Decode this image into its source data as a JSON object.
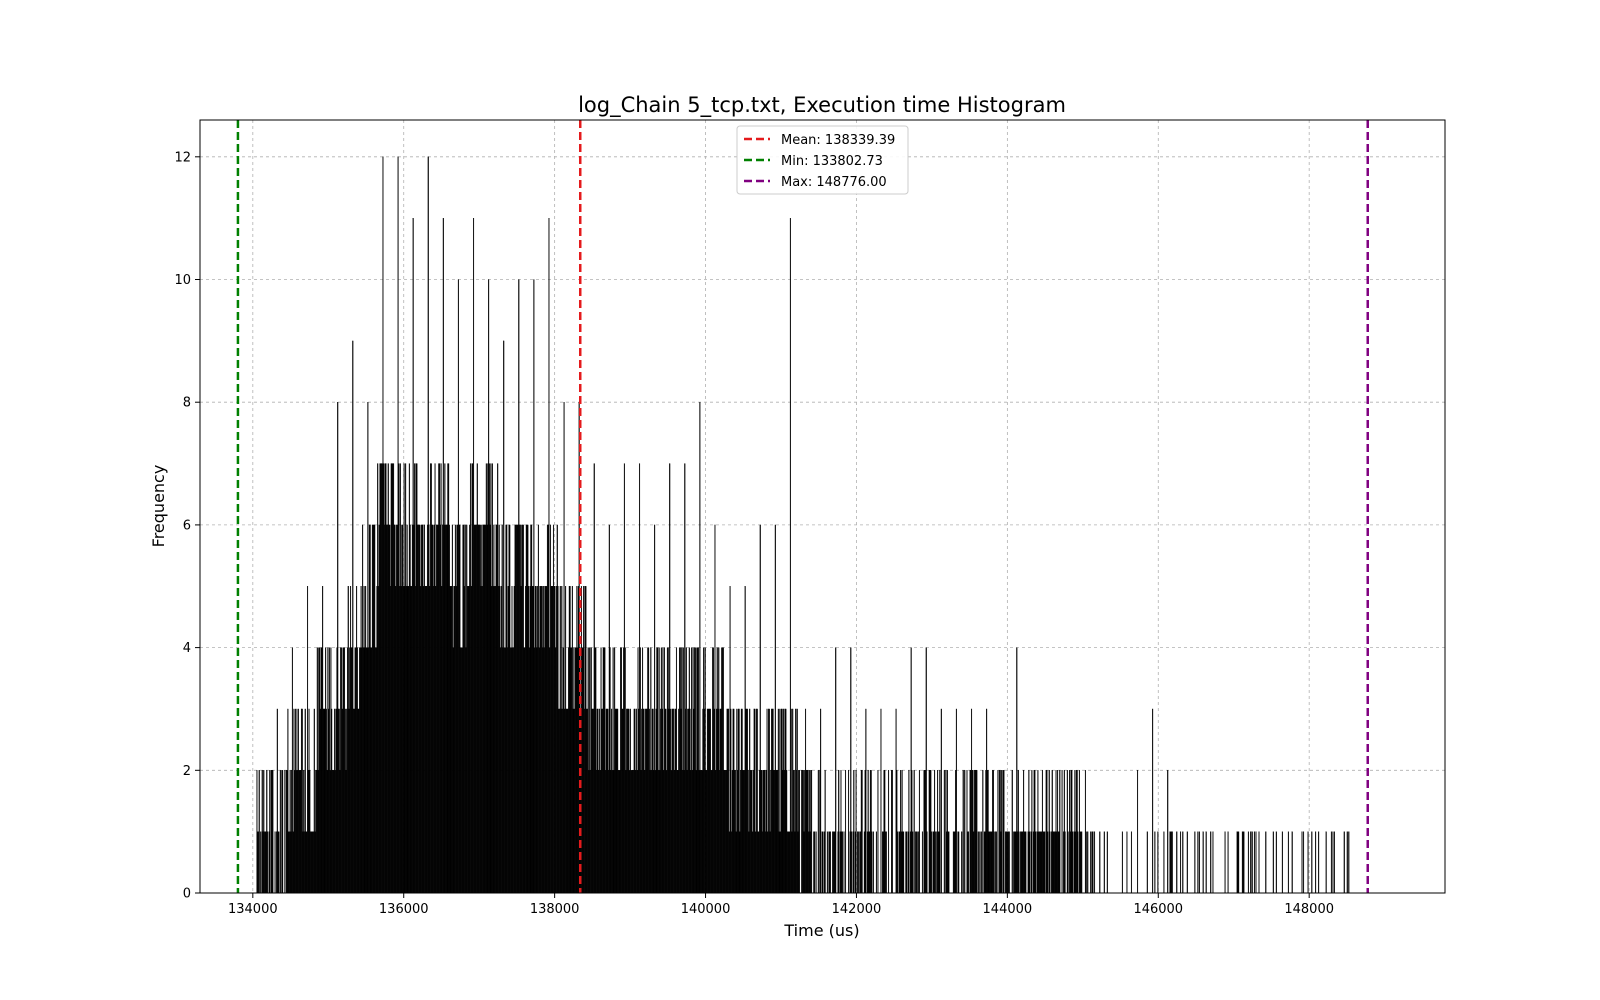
{
  "chart_data": {
    "type": "bar",
    "title": "log_Chain 5_tcp.txt, Execution time Histogram",
    "xlabel": "Time (us)",
    "ylabel": "Frequency",
    "xlim": [
      133300,
      149800
    ],
    "ylim": [
      0,
      12.6
    ],
    "xticks": [
      134000,
      136000,
      138000,
      140000,
      142000,
      144000,
      146000,
      148000
    ],
    "yticks": [
      0,
      2,
      4,
      6,
      8,
      10,
      12
    ],
    "grid": true,
    "legend_position": "top-center",
    "bar_color": "#000000",
    "bins": {
      "centers": [
        134150,
        134350,
        134550,
        134750,
        134950,
        135150,
        135350,
        135550,
        135750,
        135950,
        136150,
        136350,
        136550,
        136750,
        136950,
        137150,
        137350,
        137550,
        137750,
        137950,
        138150,
        138350,
        138550,
        138750,
        138950,
        139150,
        139350,
        139550,
        139750,
        139950,
        140150,
        140350,
        140550,
        140750,
        140950,
        141150,
        141350,
        141550,
        141750,
        141950,
        142150,
        142350,
        142550,
        142750,
        142950,
        143150,
        143350,
        143550,
        143750,
        143950,
        144150,
        144350,
        144550,
        144750,
        144950,
        145150,
        145350,
        145550,
        145750,
        145950,
        146150,
        146350,
        146550,
        146750,
        146950,
        147150,
        147350,
        147550,
        147750,
        147950,
        148150,
        148350,
        148550
      ],
      "peaks": [
        2,
        3,
        4,
        5,
        5,
        8,
        9,
        8,
        12,
        12,
        11,
        12,
        11,
        10,
        11,
        10,
        9,
        10,
        10,
        11,
        8,
        8,
        7,
        6,
        7,
        7,
        6,
        7,
        7,
        8,
        6,
        5,
        5,
        6,
        6,
        11,
        3,
        3,
        4,
        4,
        3,
        3,
        3,
        4,
        4,
        3,
        3,
        3,
        3,
        2,
        4,
        2,
        2,
        2,
        2,
        1,
        1,
        1,
        2,
        3,
        2,
        1,
        1,
        1,
        1,
        1,
        0,
        1,
        1,
        1,
        1,
        0,
        1
      ],
      "fill_levels": [
        1,
        1,
        2,
        2,
        3,
        3,
        4,
        5,
        6,
        6,
        6,
        6,
        6,
        5,
        6,
        6,
        5,
        5,
        5,
        5,
        4,
        4,
        3,
        3,
        3,
        3,
        3,
        3,
        3,
        3,
        3,
        2,
        2,
        2,
        2,
        2,
        1,
        1,
        1,
        1,
        1,
        1,
        1,
        1,
        1,
        1,
        1,
        1,
        1,
        1,
        1,
        1,
        1,
        1,
        1,
        0,
        0,
        0,
        0,
        0,
        0,
        0,
        0,
        0,
        0,
        0,
        0,
        0,
        0,
        0,
        0,
        0,
        0
      ]
    },
    "series": [
      {
        "name": "Mean: 138339.39",
        "x": 138339.39,
        "color": "#e41a1c",
        "style": "dashed-vertical-line"
      },
      {
        "name": "Min: 133802.73",
        "x": 133802.73,
        "color": "#008000",
        "style": "dashed-vertical-line"
      },
      {
        "name": "Max: 148776.00",
        "x": 148776.0,
        "color": "#800080",
        "style": "dashed-vertical-line"
      }
    ]
  }
}
